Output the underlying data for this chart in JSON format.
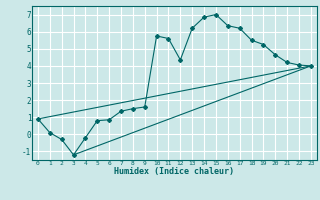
{
  "xlabel": "Humidex (Indice chaleur)",
  "bg_color": "#cce8e8",
  "grid_color": "#ffffff",
  "line_color": "#006666",
  "xlim": [
    -0.5,
    23.5
  ],
  "ylim": [
    -1.5,
    7.5
  ],
  "xticks": [
    0,
    1,
    2,
    3,
    4,
    5,
    6,
    7,
    8,
    9,
    10,
    11,
    12,
    13,
    14,
    15,
    16,
    17,
    18,
    19,
    20,
    21,
    22,
    23
  ],
  "yticks": [
    -1,
    0,
    1,
    2,
    3,
    4,
    5,
    6,
    7
  ],
  "line1_x": [
    0,
    1,
    2,
    3,
    4,
    5,
    6,
    7,
    8,
    9,
    10,
    11,
    12,
    13,
    14,
    15,
    16,
    17,
    18,
    19,
    20,
    21,
    22,
    23
  ],
  "line1_y": [
    0.9,
    0.1,
    -0.3,
    -1.2,
    -0.2,
    0.8,
    0.85,
    1.35,
    1.5,
    1.6,
    5.75,
    5.6,
    4.35,
    6.2,
    6.85,
    7.0,
    6.35,
    6.2,
    5.5,
    5.25,
    4.65,
    4.2,
    4.05,
    4.0
  ],
  "line2_x": [
    0,
    23
  ],
  "line2_y": [
    0.9,
    4.0
  ],
  "line3_x": [
    3,
    23
  ],
  "line3_y": [
    -1.2,
    4.0
  ],
  "marker_x": [
    0,
    1,
    2,
    3,
    4,
    5,
    6,
    7,
    8,
    9,
    10,
    11,
    12,
    13,
    14,
    15,
    16,
    17,
    18,
    19,
    20,
    21,
    22,
    23
  ],
  "marker_y": [
    0.9,
    0.1,
    -0.3,
    -1.2,
    -0.2,
    0.8,
    0.85,
    1.35,
    1.5,
    1.6,
    5.75,
    5.6,
    4.35,
    6.2,
    6.85,
    7.0,
    6.35,
    6.2,
    5.5,
    5.25,
    4.65,
    4.2,
    4.05,
    4.0
  ]
}
